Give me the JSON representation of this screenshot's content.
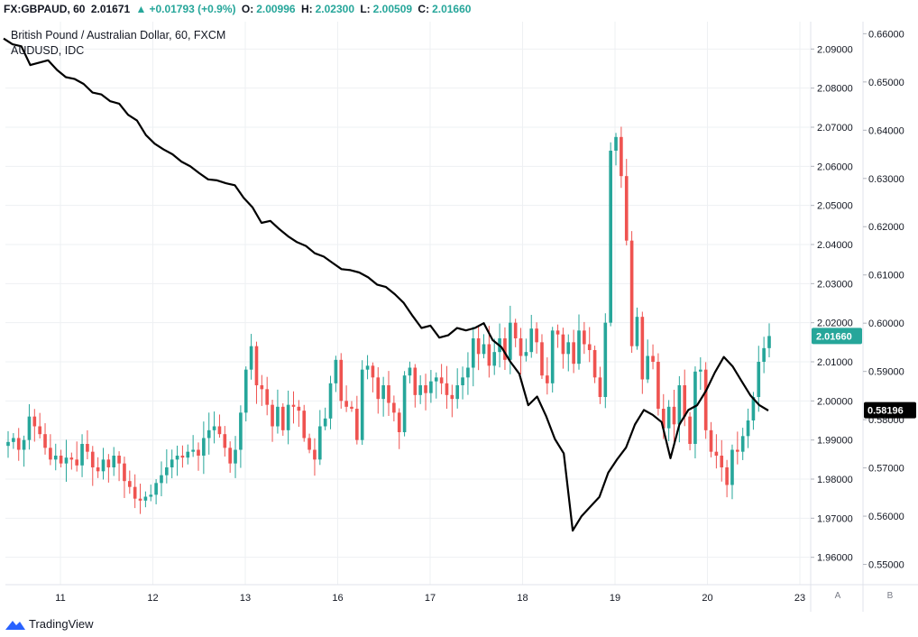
{
  "header": {
    "symbol": "FX:GBPAUD, 60",
    "last": "2.01671",
    "change": "+0.01793 (+0.9%)",
    "open_label": "O:",
    "open": "2.00996",
    "high_label": "H:",
    "high": "2.02300",
    "low_label": "L:",
    "low": "2.00509",
    "close_label": "C:",
    "close": "2.01660"
  },
  "legend": {
    "main": "British Pound / Australian Dollar, 60, FXCM",
    "compare": "AUDUSD, IDC"
  },
  "footer": {
    "brand": "TradingView"
  },
  "scale_buttons": [
    "A",
    "B"
  ],
  "colors": {
    "up": "#26a69a",
    "down": "#ef5350",
    "line": "#000000",
    "last_price": "#26a69a",
    "last_compare": "#000000"
  },
  "chart_data": {
    "type": "candlestick",
    "x_tick_labels": [
      "11",
      "12",
      "13",
      "16",
      "17",
      "18",
      "19",
      "20",
      "23"
    ],
    "y_axis_left_scale": {
      "ticks": [
        "2.09000",
        "2.08000",
        "2.07000",
        "2.06000",
        "2.05000",
        "2.04000",
        "2.03000",
        "2.02000",
        "2.01000",
        "2.00000",
        "1.99000",
        "1.98000",
        "1.97000",
        "1.96000"
      ],
      "range": [
        1.953,
        2.097
      ]
    },
    "y_axis_right_scale": {
      "ticks": [
        "0.66000",
        "0.65000",
        "0.64000",
        "0.63000",
        "0.62000",
        "0.61000",
        "0.60000",
        "0.59000",
        "0.58000",
        "0.57000",
        "0.56000",
        "0.55000"
      ],
      "range": [
        0.5458,
        0.6625
      ]
    },
    "last_price_label": "2.01660",
    "last_compare_label": "0.58196",
    "series": [
      {
        "name": "GBPAUD",
        "kind": "candles",
        "closes": [
          1.9895,
          1.9905,
          1.9875,
          1.99,
          1.996,
          1.9935,
          1.9915,
          1.988,
          1.985,
          1.986,
          1.984,
          1.9855,
          1.985,
          1.9835,
          1.989,
          1.987,
          1.983,
          1.982,
          1.985,
          1.983,
          1.986,
          1.984,
          1.9795,
          1.978,
          1.975,
          1.9745,
          1.9755,
          1.976,
          1.979,
          1.981,
          1.983,
          1.985,
          1.986,
          1.9855,
          1.987,
          1.9875,
          1.986,
          1.9905,
          1.9925,
          1.9935,
          1.9915,
          1.988,
          1.984,
          1.9875,
          1.997,
          2.008,
          2.014,
          2.004,
          2.003,
          1.999,
          1.9935,
          1.9985,
          1.9925,
          1.999,
          1.9985,
          1.9975,
          1.9905,
          1.9875,
          1.985,
          1.9935,
          1.9955,
          2.0045,
          2.0105,
          2.0,
          1.9985,
          1.998,
          1.99,
          2.008,
          2.009,
          2.006,
          2.0005,
          2.004,
          1.9995,
          1.997,
          1.992,
          2.0065,
          2.0085,
          2.0015,
          2.004,
          2.002,
          2.005,
          2.006,
          2.0045,
          2.0015,
          2.0005,
          2.004,
          2.006,
          2.0085,
          2.016,
          2.012,
          2.0145,
          2.009,
          2.0125,
          2.016,
          2.0105,
          2.02,
          2.016,
          2.0115,
          2.0125,
          2.0185,
          2.015,
          2.0065,
          2.0045,
          2.018,
          2.017,
          2.012,
          2.015,
          2.0095,
          2.018,
          2.0145,
          2.013,
          2.006,
          2.001,
          2.02,
          2.064,
          2.0675,
          2.0575,
          2.041,
          2.014,
          2.0215,
          2.0055,
          2.0115,
          2.01,
          1.998,
          1.993,
          1.9985,
          1.994,
          2.004,
          1.996,
          1.989,
          2.0075,
          2.008,
          1.9925,
          1.987,
          1.986,
          1.983,
          1.9785,
          1.9875,
          1.987,
          1.991,
          1.995,
          2.001,
          2.01,
          2.0135,
          2.0166
        ]
      },
      {
        "name": "AUDUSD",
        "kind": "line",
        "values": [
          0.659,
          0.6578,
          0.6574,
          0.6535,
          0.654,
          0.6545,
          0.6525,
          0.651,
          0.6506,
          0.6496,
          0.6478,
          0.6474,
          0.646,
          0.6455,
          0.6432,
          0.642,
          0.639,
          0.6372,
          0.636,
          0.635,
          0.6335,
          0.6325,
          0.6311,
          0.6298,
          0.6296,
          0.629,
          0.6286,
          0.626,
          0.624,
          0.6208,
          0.6212,
          0.6195,
          0.618,
          0.6168,
          0.616,
          0.6145,
          0.6138,
          0.6125,
          0.6112,
          0.611,
          0.6105,
          0.6095,
          0.608,
          0.6075,
          0.606,
          0.6042,
          0.6015,
          0.599,
          0.5995,
          0.597,
          0.5975,
          0.599,
          0.5985,
          0.599,
          0.6,
          0.5965,
          0.595,
          0.592,
          0.5895,
          0.583,
          0.5848,
          0.5808,
          0.576,
          0.573,
          0.557,
          0.56,
          0.562,
          0.564,
          0.569,
          0.5718,
          0.5742,
          0.579,
          0.582,
          0.581,
          0.5795,
          0.572,
          0.579,
          0.582,
          0.583,
          0.586,
          0.5898,
          0.593,
          0.591,
          0.588,
          0.585,
          0.583,
          0.5819
        ]
      }
    ]
  }
}
